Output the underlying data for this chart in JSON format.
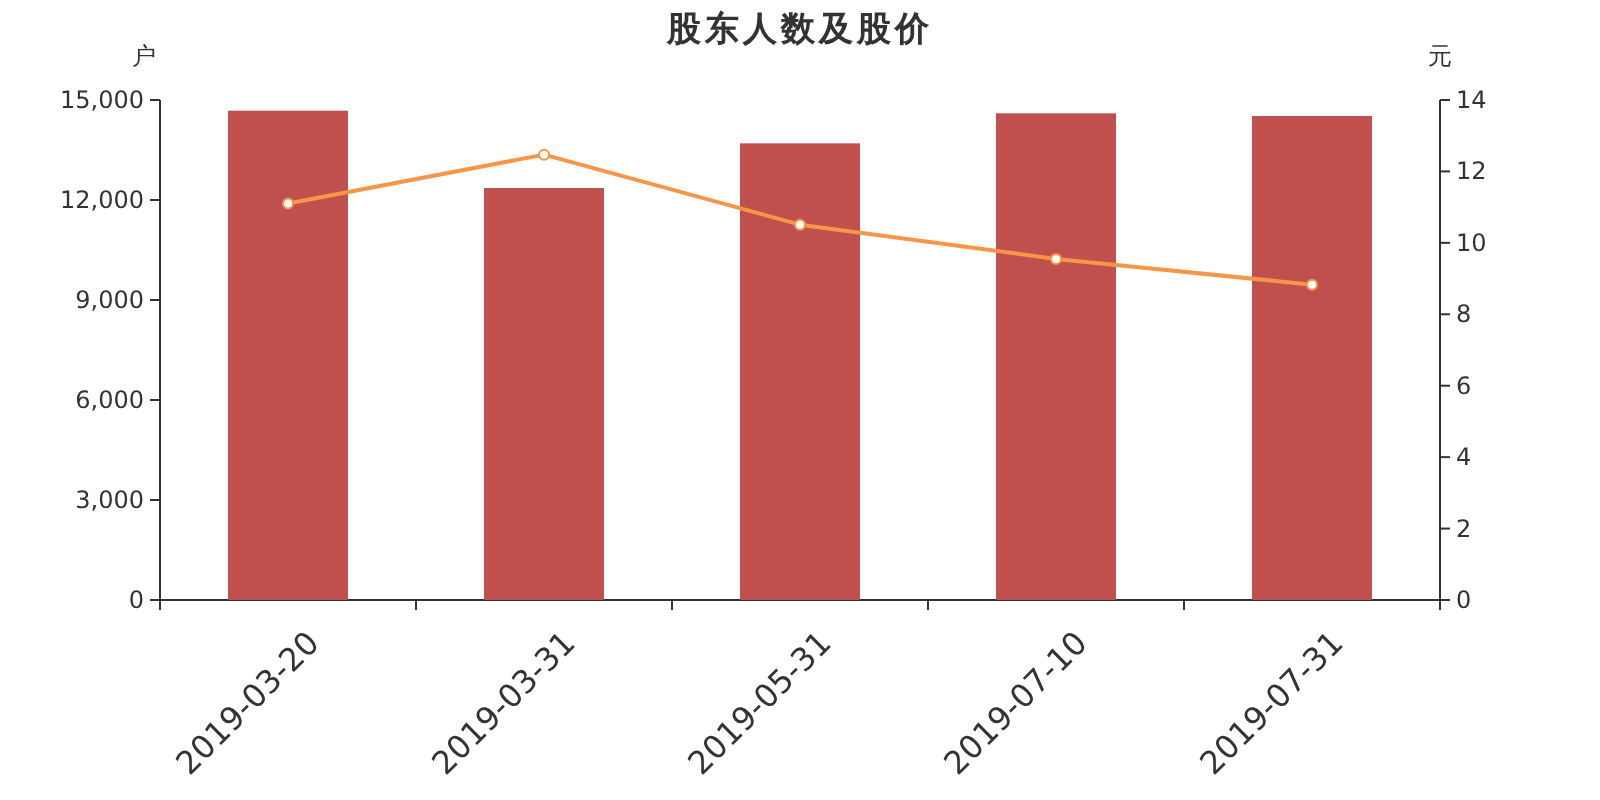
{
  "chart_data": {
    "type": "bar",
    "title": "股东人数及股价",
    "ylabel": "户",
    "y2label": "元",
    "categories": [
      "2019-03-20",
      "2019-03-31",
      "2019-05-31",
      "2019-07-10",
      "2019-07-31"
    ],
    "series": [
      {
        "color": "#c0504d",
        "values": [
          14680,
          12360,
          13700,
          14600,
          14520
        ]
      },
      {
        "type": "line",
        "axis": "y2",
        "color": "#f79646",
        "marker": "circle",
        "values": [
          11.1,
          12.47,
          10.51,
          9.55,
          8.83
        ]
      }
    ],
    "ylim": [
      0,
      15000
    ],
    "yticks": [
      0,
      {
        "value": 3000,
        "label": "3,000"
      },
      {
        "value": 6000,
        "label": "6,000"
      },
      {
        "value": 9000,
        "label": "9,000"
      },
      {
        "value": 12000,
        "label": "12,000"
      },
      {
        "value": 15000,
        "label": "15,000"
      }
    ],
    "y2lim": [
      0,
      14
    ],
    "y2ticks": [
      0,
      2,
      4,
      6,
      8,
      10,
      12,
      14
    ]
  }
}
